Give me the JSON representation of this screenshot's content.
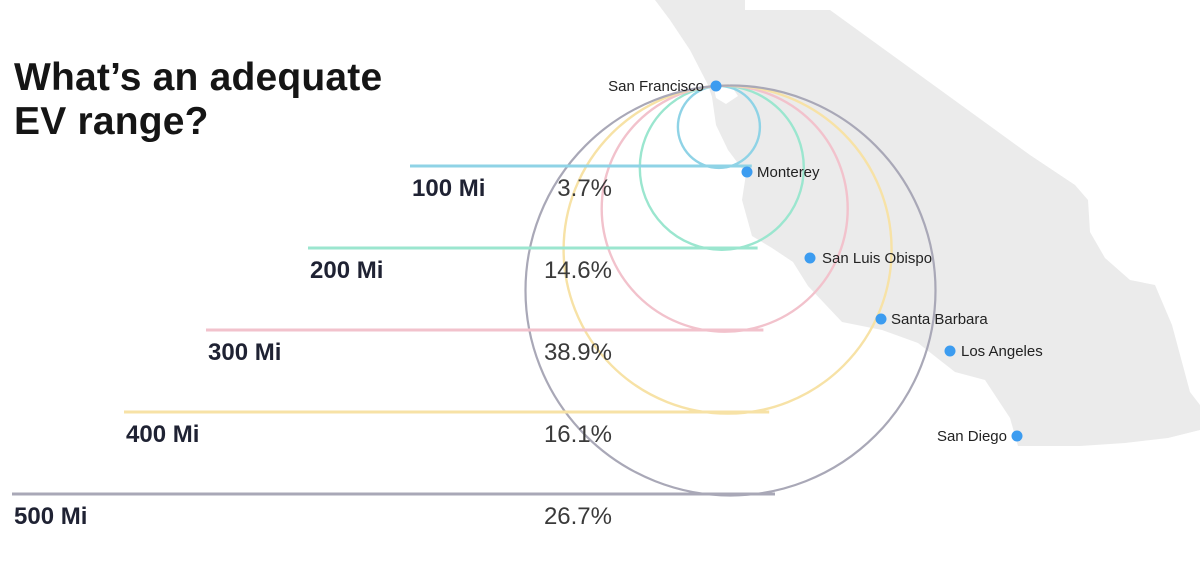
{
  "title": {
    "line1": "What’s an adequate",
    "line2": "EV range?"
  },
  "colors": {
    "map_fill": "#ebebeb",
    "city_dot": "#3c9cf0",
    "range_100": "#8fd3e6",
    "range_200": "#9be6cf",
    "range_300": "#f2c2cc",
    "range_400": "#f7e2a6",
    "range_500": "#a9a8b7"
  },
  "cities": [
    {
      "name": "San Francisco"
    },
    {
      "name": "Monterey"
    },
    {
      "name": "San Luis Obispo"
    },
    {
      "name": "Santa Barbara"
    },
    {
      "name": "Los Angeles"
    },
    {
      "name": "San Diego"
    }
  ],
  "chart_data": {
    "type": "bar",
    "title": "What’s an adequate EV range?",
    "categories": [
      "100 Mi",
      "200 Mi",
      "300 Mi",
      "400 Mi",
      "500 Mi"
    ],
    "values": [
      3.7,
      14.6,
      38.9,
      16.1,
      26.7
    ],
    "value_labels": [
      "3.7%",
      "14.6%",
      "38.9%",
      "16.1%",
      "26.7%"
    ],
    "series_colors": [
      "#8fd3e6",
      "#9be6cf",
      "#f2c2cc",
      "#f7e2a6",
      "#a9a8b7"
    ],
    "range_miles": [
      100,
      200,
      300,
      400,
      500
    ],
    "origin": "San Francisco",
    "grid": false
  }
}
